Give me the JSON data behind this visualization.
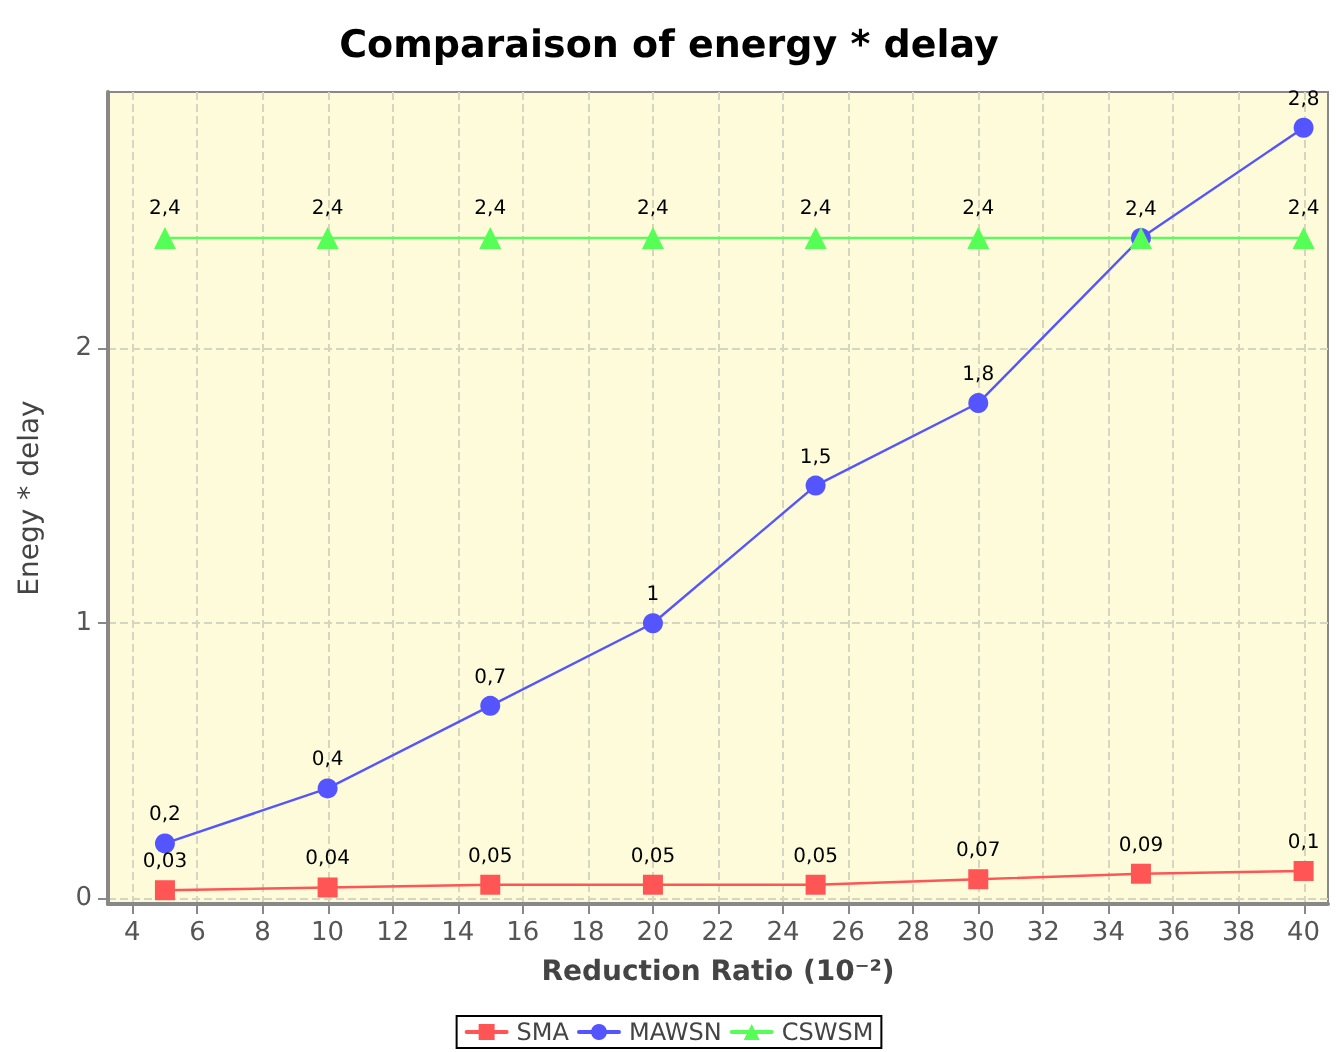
{
  "chart_data": {
    "type": "line",
    "title": "Comparaison of energy * delay",
    "xlabel": "Reduction Ratio (10⁻²)",
    "ylabel": "Enegy * delay",
    "x": [
      5,
      10,
      15,
      20,
      25,
      30,
      35,
      40
    ],
    "series": [
      {
        "name": "SMA",
        "color": "#ff5555",
        "marker": "square",
        "values": [
          0.03,
          0.04,
          0.05,
          0.05,
          0.05,
          0.07,
          0.09,
          0.1
        ],
        "value_labels": [
          "0,03",
          "0,04",
          "0,05",
          "0,05",
          "0,05",
          "0,07",
          "0,09",
          "0,1"
        ]
      },
      {
        "name": "MAWSN",
        "color": "#5555ff",
        "marker": "circle",
        "values": [
          0.2,
          0.4,
          0.7,
          1,
          1.5,
          1.8,
          2.4,
          2.8
        ],
        "value_labels": [
          "0,2",
          "0,4",
          "0,7",
          "1",
          "1,5",
          "1,8",
          "2,4",
          "2,8"
        ]
      },
      {
        "name": "CSWSM",
        "color": "#55ff55",
        "marker": "triangle",
        "values": [
          2.4,
          2.4,
          2.4,
          2.4,
          2.4,
          2.4,
          2.4,
          2.4
        ],
        "value_labels": [
          "2,4",
          "2,4",
          "2,4",
          "2,4",
          "2,4",
          "2,4",
          null,
          "2,4"
        ]
      }
    ],
    "xlim": [
      3.25,
      40.75
    ],
    "xticks": [
      4,
      6,
      8,
      10,
      12,
      14,
      16,
      18,
      20,
      22,
      24,
      26,
      28,
      30,
      32,
      34,
      36,
      38,
      40
    ],
    "ylim": [
      -0.02,
      2.93
    ],
    "yticks": [
      0,
      1,
      2
    ],
    "grid": true,
    "legend": "bottom",
    "line_style": "solid"
  }
}
